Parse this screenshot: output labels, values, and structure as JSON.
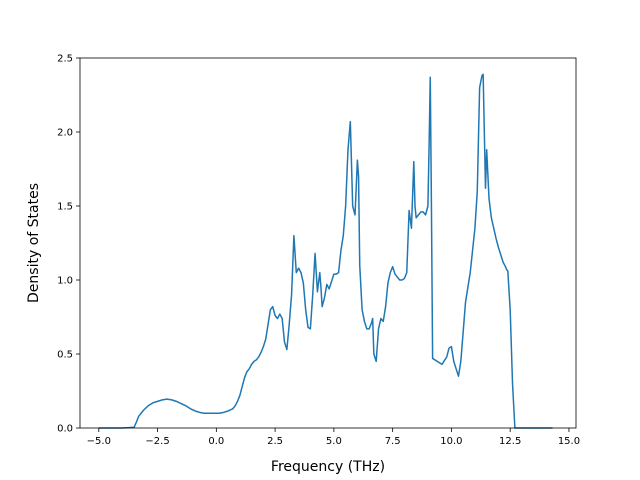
{
  "chart_data": {
    "type": "line",
    "title": "",
    "xlabel": "Frequency (THz)",
    "ylabel": "Density of States",
    "xlim": [
      -5.8,
      15.3
    ],
    "ylim": [
      0,
      2.5
    ],
    "xticks": [
      -5.0,
      -2.5,
      0.0,
      2.5,
      5.0,
      7.5,
      10.0,
      12.5,
      15.0
    ],
    "xtick_labels": [
      "−5.0",
      "−2.5",
      "0.0",
      "2.5",
      "5.0",
      "7.5",
      "10.0",
      "12.5",
      "15.0"
    ],
    "yticks": [
      0.0,
      0.5,
      1.0,
      1.5,
      2.0,
      2.5
    ],
    "ytick_labels": [
      "0.0",
      "0.5",
      "1.0",
      "1.5",
      "2.0",
      "2.5"
    ],
    "grid": false,
    "line_color": "#1f77b4",
    "series": [
      {
        "x": [
          -5.0,
          -4.0,
          -3.5,
          -3.4,
          -3.3,
          -3.1,
          -2.9,
          -2.7,
          -2.5,
          -2.3,
          -2.1,
          -1.9,
          -1.7,
          -1.5,
          -1.3,
          -1.1,
          -0.9,
          -0.7,
          -0.5,
          -0.3,
          -0.1,
          0.1,
          0.3,
          0.5,
          0.7,
          0.8,
          0.9,
          1.0,
          1.1,
          1.2,
          1.3,
          1.4,
          1.5,
          1.6,
          1.7,
          1.8,
          1.9,
          2.0,
          2.1,
          2.2,
          2.3,
          2.4,
          2.5,
          2.6,
          2.7,
          2.8,
          2.9,
          3.0,
          3.1,
          3.2,
          3.25,
          3.3,
          3.4,
          3.5,
          3.6,
          3.7,
          3.8,
          3.9,
          4.0,
          4.1,
          4.2,
          4.3,
          4.4,
          4.45,
          4.5,
          4.6,
          4.7,
          4.8,
          4.9,
          5.0,
          5.1,
          5.2,
          5.3,
          5.4,
          5.5,
          5.6,
          5.7,
          5.8,
          5.9,
          6.0,
          6.05,
          6.1,
          6.2,
          6.3,
          6.4,
          6.5,
          6.6,
          6.65,
          6.7,
          6.8,
          6.9,
          7.0,
          7.1,
          7.2,
          7.3,
          7.4,
          7.5,
          7.6,
          7.7,
          7.8,
          7.9,
          8.0,
          8.1,
          8.2,
          8.3,
          8.4,
          8.45,
          8.5,
          8.6,
          8.7,
          8.8,
          8.9,
          9.0,
          9.05,
          9.1,
          9.15,
          9.2,
          9.4,
          9.6,
          9.8,
          9.9,
          10.0,
          10.1,
          10.2,
          10.3,
          10.4,
          10.5,
          10.6,
          10.7,
          10.8,
          10.9,
          11.0,
          11.1,
          11.2,
          11.3,
          11.35,
          11.4,
          11.45,
          11.5,
          11.6,
          11.7,
          11.8,
          11.9,
          12.0,
          12.1,
          12.2,
          12.3,
          12.35,
          12.4,
          12.5,
          12.6,
          12.7,
          12.8,
          13.0,
          13.5,
          14.3
        ],
        "y": [
          0.0,
          0.0,
          0.005,
          0.04,
          0.08,
          0.12,
          0.15,
          0.17,
          0.18,
          0.19,
          0.195,
          0.19,
          0.18,
          0.165,
          0.15,
          0.13,
          0.115,
          0.105,
          0.1,
          0.1,
          0.1,
          0.1,
          0.105,
          0.115,
          0.13,
          0.15,
          0.18,
          0.22,
          0.28,
          0.34,
          0.38,
          0.4,
          0.43,
          0.45,
          0.46,
          0.48,
          0.51,
          0.55,
          0.6,
          0.7,
          0.8,
          0.82,
          0.76,
          0.74,
          0.77,
          0.74,
          0.58,
          0.53,
          0.7,
          0.9,
          1.1,
          1.3,
          1.05,
          1.08,
          1.05,
          0.98,
          0.8,
          0.68,
          0.67,
          0.9,
          1.18,
          0.92,
          1.05,
          0.95,
          0.82,
          0.88,
          0.97,
          0.94,
          0.99,
          1.04,
          1.04,
          1.05,
          1.2,
          1.3,
          1.5,
          1.88,
          2.07,
          1.5,
          1.44,
          1.81,
          1.7,
          1.1,
          0.8,
          0.72,
          0.67,
          0.67,
          0.71,
          0.74,
          0.5,
          0.45,
          0.67,
          0.74,
          0.72,
          0.82,
          0.98,
          1.05,
          1.09,
          1.04,
          1.02,
          1.0,
          1.0,
          1.01,
          1.05,
          1.47,
          1.35,
          1.8,
          1.5,
          1.42,
          1.44,
          1.46,
          1.46,
          1.44,
          1.5,
          1.9,
          2.37,
          1.5,
          0.47,
          0.45,
          0.43,
          0.48,
          0.54,
          0.55,
          0.45,
          0.4,
          0.35,
          0.45,
          0.65,
          0.85,
          0.95,
          1.05,
          1.2,
          1.35,
          1.6,
          2.3,
          2.38,
          2.39,
          2.0,
          1.62,
          1.88,
          1.55,
          1.42,
          1.35,
          1.28,
          1.22,
          1.17,
          1.12,
          1.09,
          1.07,
          1.06,
          0.8,
          0.3,
          0.0,
          0.0,
          0.0,
          0.0,
          0.0
        ]
      }
    ]
  }
}
